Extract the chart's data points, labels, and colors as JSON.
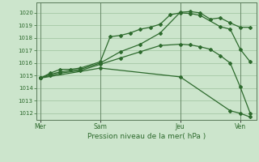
{
  "background_color": "#cce5cc",
  "plot_bg_color": "#cce5cc",
  "line_color": "#2d6a2d",
  "grid_color": "#aaccaa",
  "tick_color": "#2d6a2d",
  "xlabel": "Pression niveau de la mer( hPa )",
  "ylim": [
    1011.5,
    1020.8
  ],
  "yticks": [
    1012,
    1013,
    1014,
    1015,
    1016,
    1017,
    1018,
    1019,
    1020
  ],
  "xtick_labels": [
    "Mer",
    "Sam",
    "Jeu",
    "Ven"
  ],
  "xtick_positions": [
    0,
    3,
    7,
    10
  ],
  "vlines": [
    0,
    3,
    7,
    10
  ],
  "series": [
    {
      "x": [
        0,
        0.5,
        1.0,
        1.5,
        2.0,
        3.0,
        3.5,
        4.0,
        4.5,
        5.0,
        5.5,
        6.0,
        6.5,
        7.0,
        7.5,
        8.0,
        9.0,
        9.5,
        10.0,
        10.5
      ],
      "y": [
        1014.8,
        1015.2,
        1015.5,
        1015.5,
        1015.6,
        1016.1,
        1018.1,
        1018.2,
        1018.4,
        1018.7,
        1018.85,
        1019.1,
        1019.85,
        1020.0,
        1019.95,
        1019.8,
        1018.9,
        1018.7,
        1017.1,
        1016.1
      ]
    },
    {
      "x": [
        0,
        0.5,
        1.0,
        2.0,
        3.0,
        4.0,
        5.0,
        6.0,
        7.0,
        7.5,
        8.0,
        8.5,
        9.0,
        9.5,
        10.0,
        10.5
      ],
      "y": [
        1014.8,
        1015.1,
        1015.3,
        1015.5,
        1016.0,
        1016.9,
        1017.5,
        1018.4,
        1020.05,
        1020.1,
        1020.0,
        1019.5,
        1019.6,
        1019.2,
        1018.85,
        1018.85
      ]
    },
    {
      "x": [
        0,
        0.5,
        1.0,
        2.0,
        3.0,
        4.0,
        5.0,
        6.0,
        7.0,
        7.5,
        8.0,
        8.5,
        9.0,
        9.5,
        10.0,
        10.5
      ],
      "y": [
        1014.8,
        1015.0,
        1015.2,
        1015.4,
        1015.9,
        1016.4,
        1016.9,
        1017.4,
        1017.5,
        1017.45,
        1017.3,
        1017.1,
        1016.6,
        1016.0,
        1014.1,
        1012.0
      ]
    },
    {
      "x": [
        0,
        3,
        7,
        9.5,
        10.0,
        10.5
      ],
      "y": [
        1014.8,
        1015.6,
        1014.9,
        1012.2,
        1012.0,
        1011.7
      ]
    }
  ]
}
